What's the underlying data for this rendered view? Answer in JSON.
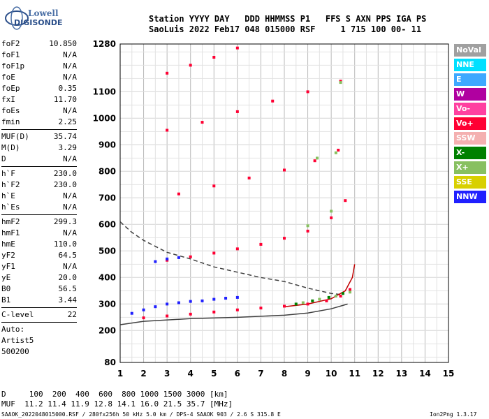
{
  "logo": {
    "top": "Lowell",
    "bottom": "DIGISONDE"
  },
  "header": {
    "line1": "Station YYYY DAY   DDD HHMMSS P1   FFS S AXN PPS IGA PS",
    "line2": "SaoLuis 2022 Feb17 048 015000 RSF     1 715 100 00- 11"
  },
  "params": {
    "group1": [
      {
        "name": "foF2",
        "value": "10.850"
      },
      {
        "name": "foF1",
        "value": "N/A"
      },
      {
        "name": "foF1p",
        "value": "N/A"
      },
      {
        "name": "foE",
        "value": "N/A"
      },
      {
        "name": "foEp",
        "value": "0.35"
      },
      {
        "name": "fxI",
        "value": "11.70"
      },
      {
        "name": "foEs",
        "value": "N/A"
      },
      {
        "name": "fmin",
        "value": "2.25"
      }
    ],
    "group2": [
      {
        "name": "MUF(D)",
        "value": "35.74"
      },
      {
        "name": "M(D)",
        "value": "3.29"
      },
      {
        "name": "D",
        "value": "N/A"
      }
    ],
    "group3": [
      {
        "name": "h`F",
        "value": "230.0"
      },
      {
        "name": "h`F2",
        "value": "230.0"
      },
      {
        "name": "h`E",
        "value": "N/A"
      },
      {
        "name": "h`Es",
        "value": "N/A"
      }
    ],
    "group4": [
      {
        "name": "hmF2",
        "value": "299.3"
      },
      {
        "name": "hmF1",
        "value": "N/A"
      },
      {
        "name": "hmE",
        "value": "110.0"
      },
      {
        "name": "yF2",
        "value": "64.5"
      },
      {
        "name": "yF1",
        "value": "N/A"
      },
      {
        "name": "yE",
        "value": "20.0"
      },
      {
        "name": "B0",
        "value": "56.5"
      },
      {
        "name": "B1",
        "value": "3.44"
      }
    ],
    "group5": [
      {
        "name": "C-level",
        "value": "22"
      }
    ],
    "auto_label": "Auto:",
    "artist": "Artist5",
    "artist_version": "500200"
  },
  "legend": [
    {
      "label": "NoVal",
      "color": "#a0a0a0"
    },
    {
      "label": "NNE",
      "color": "#00e0ff"
    },
    {
      "label": "E",
      "color": "#3ea8ff"
    },
    {
      "label": "W",
      "color": "#b000a0"
    },
    {
      "label": "Vo-",
      "color": "#ff40a0"
    },
    {
      "label": "Vo+",
      "color": "#ff0033"
    },
    {
      "label": "SSW",
      "color": "#f4b0b0"
    },
    {
      "label": "X-",
      "color": "#008000"
    },
    {
      "label": "X+",
      "color": "#88c060"
    },
    {
      "label": "SSE",
      "color": "#d8d000"
    },
    {
      "label": "NNW",
      "color": "#2020ff"
    }
  ],
  "bottom": {
    "line1": "D     100  200  400  600  800 1000 1500 3000 [km]",
    "line2": "MUF  11.2 11.4 11.9 12.8 14.1 16.0 21.5 35.7 [MHz]"
  },
  "footer": {
    "left": "SAAOK_2022048015000.RSF / 280fx256h 50 kHz 5.0 km / DPS-4 SAAOK 903 / 2.6 S 315.8 E",
    "right": "Ion2Png 1.3.17"
  },
  "chart_data": {
    "type": "scatter",
    "xlim": [
      1,
      15
    ],
    "ylim": [
      80,
      1280
    ],
    "x_ticks": [
      "1",
      "2",
      "3",
      "4",
      "5",
      "6",
      "7",
      "8",
      "9",
      "10",
      "11",
      "12",
      "13",
      "14",
      "15"
    ],
    "y_ticks": [
      "80",
      "200",
      "300",
      "400",
      "500",
      "600",
      "700",
      "800",
      "900",
      "1000",
      "1100",
      "1280"
    ],
    "grid": true,
    "series": [
      {
        "name": "Vo+",
        "color": "#ff0033",
        "points": [
          [
            2.0,
            248
          ],
          [
            3,
            255
          ],
          [
            4,
            262
          ],
          [
            5,
            270
          ],
          [
            6,
            278
          ],
          [
            7,
            285
          ],
          [
            8,
            292
          ],
          [
            9,
            300
          ],
          [
            9.8,
            312
          ],
          [
            10.4,
            330
          ],
          [
            10.8,
            355
          ],
          [
            3,
            465
          ],
          [
            4,
            478
          ],
          [
            5,
            492
          ],
          [
            6,
            508
          ],
          [
            7,
            525
          ],
          [
            8,
            548
          ],
          [
            9,
            575
          ],
          [
            10,
            625
          ],
          [
            10.6,
            690
          ],
          [
            3.5,
            715
          ],
          [
            5,
            745
          ],
          [
            6.5,
            775
          ],
          [
            8,
            805
          ],
          [
            9.3,
            840
          ],
          [
            10.3,
            880
          ],
          [
            3,
            955
          ],
          [
            4.5,
            985
          ],
          [
            6,
            1025
          ],
          [
            7.5,
            1065
          ],
          [
            9,
            1100
          ],
          [
            10.4,
            1140
          ],
          [
            3,
            1170
          ],
          [
            4,
            1200
          ],
          [
            5,
            1230
          ],
          [
            6,
            1265
          ]
        ]
      },
      {
        "name": "NNW",
        "color": "#2020ff",
        "points": [
          [
            1.5,
            265
          ],
          [
            2,
            278
          ],
          [
            2.5,
            290
          ],
          [
            3,
            300
          ],
          [
            3.5,
            305
          ],
          [
            4,
            310
          ],
          [
            4.5,
            312
          ],
          [
            5,
            318
          ],
          [
            5.5,
            322
          ],
          [
            6,
            325
          ],
          [
            2.5,
            460
          ],
          [
            3,
            470
          ],
          [
            3.5,
            475
          ]
        ]
      },
      {
        "name": "X+",
        "color": "#88c060",
        "points": [
          [
            8.8,
            305
          ],
          [
            9.5,
            318
          ],
          [
            10.2,
            330
          ],
          [
            10.8,
            345
          ],
          [
            9,
            595
          ],
          [
            10,
            650
          ],
          [
            9.4,
            850
          ],
          [
            10.2,
            870
          ],
          [
            10.4,
            1135
          ]
        ]
      },
      {
        "name": "X-",
        "color": "#008000",
        "points": [
          [
            8.5,
            300
          ],
          [
            9.2,
            312
          ],
          [
            9.9,
            325
          ],
          [
            10.5,
            340
          ]
        ]
      }
    ],
    "curves": [
      {
        "style": "dashed",
        "color": "#404040",
        "points": [
          [
            1,
            610
          ],
          [
            1.5,
            570
          ],
          [
            2,
            540
          ],
          [
            3,
            495
          ],
          [
            4,
            470
          ],
          [
            5,
            440
          ],
          [
            6,
            420
          ],
          [
            7,
            400
          ],
          [
            8,
            385
          ],
          [
            9,
            360
          ],
          [
            10,
            340
          ],
          [
            10.5,
            335
          ]
        ]
      },
      {
        "style": "solid",
        "color": "#404040",
        "points": [
          [
            1,
            222
          ],
          [
            2,
            235
          ],
          [
            4,
            245
          ],
          [
            6,
            250
          ],
          [
            8,
            258
          ],
          [
            9,
            266
          ],
          [
            10,
            282
          ],
          [
            10.7,
            300
          ]
        ]
      },
      {
        "style": "solid",
        "color": "#c00000",
        "points": [
          [
            8,
            290
          ],
          [
            9,
            300
          ],
          [
            10,
            320
          ],
          [
            10.6,
            350
          ],
          [
            10.9,
            400
          ],
          [
            11,
            450
          ]
        ]
      }
    ]
  }
}
